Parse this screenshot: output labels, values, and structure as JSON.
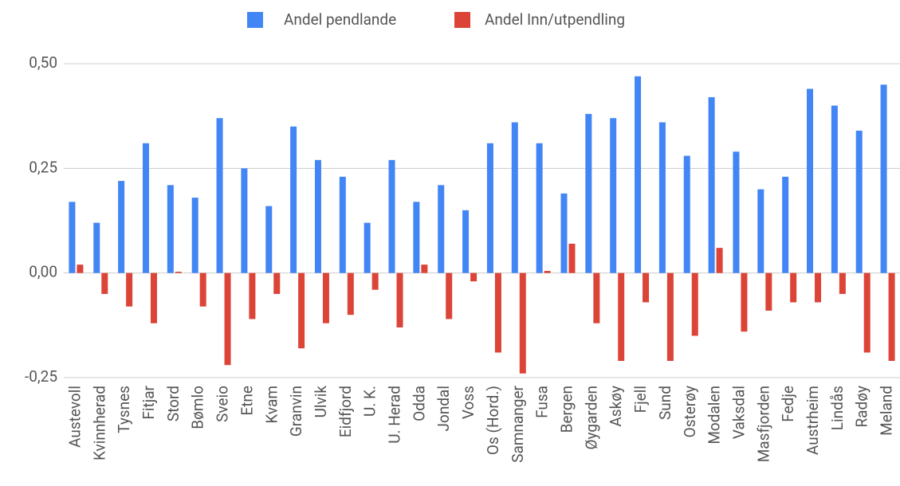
{
  "chart_data": {
    "type": "bar",
    "categories": [
      "Austevoll",
      "Kvinnherad",
      "Tysnes",
      "Fitjar",
      "Stord",
      "Bømlo",
      "Sveio",
      "Etne",
      "Kvam",
      "Granvin",
      "Ulvik",
      "Eidfjord",
      "U. K.",
      "U. Herad",
      "Odda",
      "Jondal",
      "Voss",
      "Os (Hord.)",
      "Samnanger",
      "Fusa",
      "Bergen",
      "Øygarden",
      "Askøy",
      "Fjell",
      "Sund",
      "Osterøy",
      "Modalen",
      "Vaksdal",
      "Masfjorden",
      "Fedje",
      "Austrheim",
      "Lindås",
      "Radøy",
      "Meland"
    ],
    "series": [
      {
        "name": "Andel pendlande",
        "color": "#4285f4",
        "values": [
          0.17,
          0.12,
          0.22,
          0.31,
          0.21,
          0.18,
          0.37,
          0.25,
          0.16,
          0.35,
          0.27,
          0.23,
          0.12,
          0.27,
          0.17,
          0.21,
          0.15,
          0.31,
          0.36,
          0.31,
          0.19,
          0.38,
          0.37,
          0.47,
          0.36,
          0.28,
          0.42,
          0.29,
          0.2,
          0.23,
          0.44,
          0.4,
          0.34,
          0.45
        ]
      },
      {
        "name": "Andel Inn/utpendling",
        "color": "#db4437",
        "values": [
          0.02,
          -0.05,
          -0.08,
          -0.12,
          0.003,
          -0.08,
          -0.22,
          -0.11,
          -0.05,
          -0.18,
          -0.12,
          -0.1,
          -0.04,
          -0.13,
          0.02,
          -0.11,
          -0.02,
          -0.19,
          -0.24,
          0.005,
          0.07,
          -0.12,
          -0.21,
          -0.07,
          -0.21,
          -0.15,
          0.06,
          -0.14,
          -0.09,
          -0.07,
          -0.07,
          -0.05,
          -0.19,
          -0.21
        ]
      }
    ],
    "ylim": [
      -0.25,
      0.5
    ],
    "yticks": [
      {
        "value": -0.25,
        "label": "-0,25"
      },
      {
        "value": 0,
        "label": "0,00"
      },
      {
        "value": 0.25,
        "label": "0,25"
      },
      {
        "value": 0.5,
        "label": "0,50"
      }
    ],
    "grid": true,
    "legend": "top"
  }
}
